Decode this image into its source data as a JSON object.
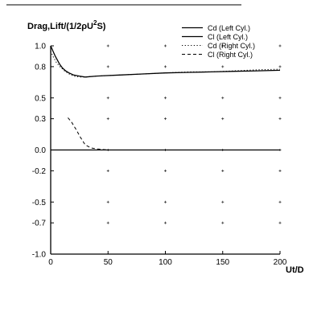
{
  "chart_data": {
    "type": "line",
    "ylabel_parts": {
      "main": "Drag,Lift/(1/2ρU",
      "sup": "2",
      "tail": "S)"
    },
    "xlabel": "Ut/D",
    "xlim": [
      0,
      200
    ],
    "ylim": [
      -1.0,
      1.0
    ],
    "x_ticks": [
      0,
      50,
      100,
      150,
      200
    ],
    "x_tick_labels": [
      "0",
      "50",
      "100",
      "150",
      "200"
    ],
    "y_ticks": [
      1.0,
      0.8,
      0.5,
      0.3,
      0.0,
      -0.2,
      -0.5,
      -0.7,
      -1.0
    ],
    "y_tick_labels": [
      "1.0",
      "0.8",
      "0.5",
      "0.3",
      "0.0",
      "-0.2",
      "-0.5",
      "-0.7",
      "-1.0"
    ],
    "legend_placement": "top-right",
    "grid": "dot markers",
    "series": [
      {
        "name": "Cd (Left   Cyl.)",
        "style": "solid",
        "x": [
          0,
          2,
          4,
          6,
          8,
          10,
          13,
          16,
          20,
          25,
          30,
          40,
          60,
          80,
          100,
          120,
          140,
          160,
          180,
          200
        ],
        "y": [
          1.0,
          0.95,
          0.9,
          0.86,
          0.82,
          0.79,
          0.76,
          0.74,
          0.72,
          0.71,
          0.7,
          0.71,
          0.72,
          0.73,
          0.74,
          0.745,
          0.75,
          0.755,
          0.76,
          0.765
        ]
      },
      {
        "name": "Cl  (Left   Cyl.)",
        "style": "solid",
        "x": [
          0,
          20,
          40,
          60,
          80,
          100,
          120,
          140,
          160,
          180,
          200
        ],
        "y": [
          0.0,
          0.0,
          0.0,
          0.0,
          0.0,
          0.0,
          0.0,
          0.0,
          0.0,
          0.0,
          0.0
        ]
      },
      {
        "name": "Cd  (Right Cyl.)",
        "style": "dotted",
        "x": [
          0,
          2,
          5,
          8,
          12,
          16,
          20,
          25,
          30,
          40,
          60,
          80,
          100,
          120,
          140,
          160,
          180,
          200
        ],
        "y": [
          0.95,
          0.9,
          0.84,
          0.8,
          0.76,
          0.73,
          0.71,
          0.7,
          0.7,
          0.71,
          0.72,
          0.73,
          0.74,
          0.75,
          0.75,
          0.76,
          0.77,
          0.775
        ]
      },
      {
        "name": "Cl  (Right Cyl.)",
        "style": "dashed",
        "x": [
          15,
          18,
          22,
          26,
          30,
          35,
          40,
          50,
          60,
          80,
          100,
          120,
          140,
          160,
          180,
          200
        ],
        "y": [
          0.31,
          0.27,
          0.2,
          0.12,
          0.05,
          0.02,
          0.01,
          0.0,
          0.0,
          0.0,
          0.0,
          0.0,
          0.0,
          0.0,
          0.0,
          0.0
        ]
      }
    ]
  }
}
